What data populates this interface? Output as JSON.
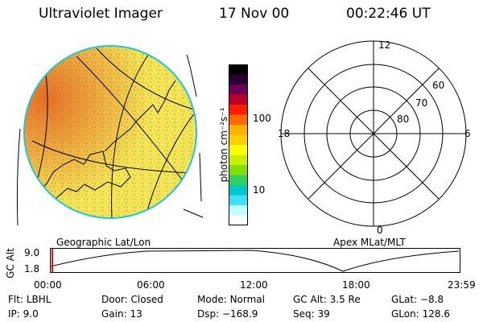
{
  "header": {
    "instrument": "Ultraviolet Imager",
    "date": "17 Nov 00",
    "time": "00:22:46 UT"
  },
  "colorbar": {
    "unit_label": "photon cm⁻²s⁻¹",
    "ticks": [
      {
        "label": "100",
        "value": 100
      },
      {
        "label": "10",
        "value": 10
      }
    ],
    "colors": [
      "#000000",
      "#2a0033",
      "#6b0055",
      "#b80026",
      "#ff1a00",
      "#ff6a00",
      "#ffb000",
      "#ffd000",
      "#ffff00",
      "#c8f000",
      "#80e000",
      "#30d060",
      "#00c8c8",
      "#40e0ff",
      "#c0ffff",
      "#ffffff"
    ]
  },
  "left_map": {
    "label": "Geographic Lat/Lon",
    "colors": {
      "fill": "#f3e45a",
      "hot": "#e85a1e",
      "edge": "#22c4d8"
    }
  },
  "right_map": {
    "label": "Apex MLat/MLT",
    "mlt_labels": {
      "top": "12",
      "left": "18",
      "right": "6",
      "bottom": "0"
    },
    "lat_labels": [
      "60",
      "70",
      "80"
    ]
  },
  "timeline": {
    "ylabel": "GC Alt",
    "yticks": [
      "9.0",
      "1.8"
    ],
    "xticks": [
      "00:00",
      "06:00",
      "12:00",
      "18:00",
      "23:59"
    ],
    "marker_color": "#ff0000"
  },
  "status": {
    "flt": {
      "label": "Flt:",
      "value": "LBHL"
    },
    "ip": {
      "label": "IP:",
      "value": "9.0"
    },
    "door": {
      "label": "Door:",
      "value": "Closed"
    },
    "gain": {
      "label": "Gain:",
      "value": "13"
    },
    "mode": {
      "label": "Mode:",
      "value": "Normal"
    },
    "dsp": {
      "label": "Dsp:",
      "value": "−168.9"
    },
    "gcalt": {
      "label": "GC Alt:",
      "value": "3.5 Re"
    },
    "seq": {
      "label": "Seq:",
      "value": "39"
    },
    "glat": {
      "label": "GLat:",
      "value": "−8.8"
    },
    "glon": {
      "label": "GLon:",
      "value": "128.6"
    }
  }
}
